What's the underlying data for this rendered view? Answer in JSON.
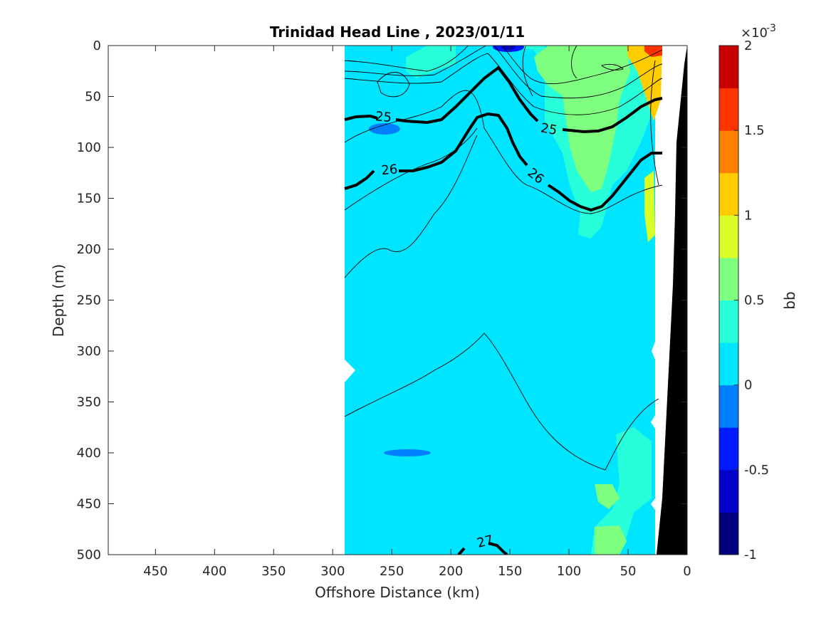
{
  "chart_data": {
    "type": "heatmap",
    "title": "Trinidad Head Line , 2023/01/11",
    "xlabel": "Offshore Distance (km)",
    "ylabel": "Depth (m)",
    "xlim": [
      490,
      0
    ],
    "ylim": [
      0,
      500
    ],
    "x_reversed": true,
    "y_reversed": true,
    "x_ticks": [
      450,
      400,
      350,
      300,
      250,
      200,
      150,
      100,
      50,
      0
    ],
    "y_ticks": [
      0,
      50,
      100,
      150,
      200,
      250,
      300,
      350,
      400,
      450,
      500
    ],
    "data_extent_x": [
      290,
      0
    ],
    "colorbar": {
      "label": "bb",
      "multiplier": "×10",
      "exponent": "-3",
      "range": [
        -1,
        2
      ],
      "tick_labels": [
        "2",
        "1.5",
        "1",
        "0.5",
        "0",
        "-0.5",
        "-1"
      ],
      "colors": [
        "#00007f",
        "#0000c8",
        "#0019ff",
        "#0080ff",
        "#00e5ff",
        "#26ffd9",
        "#7fff80",
        "#d9ff26",
        "#ffcc00",
        "#ff8000",
        "#ff3300",
        "#c80000"
      ]
    },
    "fields": [
      {
        "name": "background",
        "value": 0.1,
        "color": "#00e5ff"
      },
      {
        "name": "upper_green_patch",
        "x": [
          140,
          55
        ],
        "depth": [
          0,
          150
        ],
        "value": 0.6,
        "color": "#7fff80"
      },
      {
        "name": "nearshore_turquoise",
        "x": [
          130,
          50
        ],
        "depth": [
          0,
          280
        ],
        "value": 0.4,
        "color": "#26ffd9"
      },
      {
        "name": "nearshore_surface_max",
        "x": [
          30,
          18
        ],
        "depth": [
          0,
          20
        ],
        "value": 1.8,
        "color": "#ff3300"
      },
      {
        "name": "negative_patch_surface",
        "x": [
          150,
          150
        ],
        "depth": [
          0,
          5
        ],
        "value": -0.4,
        "color": "#0019ff"
      },
      {
        "name": "negative_patch_deep",
        "x": [
          260,
          215
        ],
        "depth": [
          400,
          400
        ],
        "value": -0.1,
        "color": "#0080ff"
      }
    ],
    "density_contours": [
      {
        "level": "25",
        "labeled": true,
        "x": [
          290,
          275,
          255,
          230,
          205,
          190,
          178,
          163,
          150,
          137,
          120,
          100,
          80,
          60,
          40,
          20
        ],
        "depth": [
          72,
          68,
          70,
          72,
          62,
          45,
          35,
          30,
          22,
          40,
          78,
          82,
          84,
          80,
          62,
          50
        ]
      },
      {
        "level": "26",
        "labeled": true,
        "x": [
          290,
          275,
          260,
          240,
          220,
          200,
          185,
          170,
          155,
          140,
          120,
          100,
          80,
          60,
          40,
          20
        ],
        "depth": [
          140,
          130,
          122,
          125,
          115,
          100,
          75,
          68,
          80,
          115,
          140,
          158,
          162,
          150,
          115,
          105
        ]
      },
      {
        "level": "27",
        "labeled": true,
        "x": [
          195,
          185,
          170,
          150,
          140
        ],
        "depth": [
          500,
          492,
          487,
          495,
          500
        ]
      }
    ],
    "grid": false,
    "seafloor": "black",
    "legend": "colorbar-right"
  }
}
